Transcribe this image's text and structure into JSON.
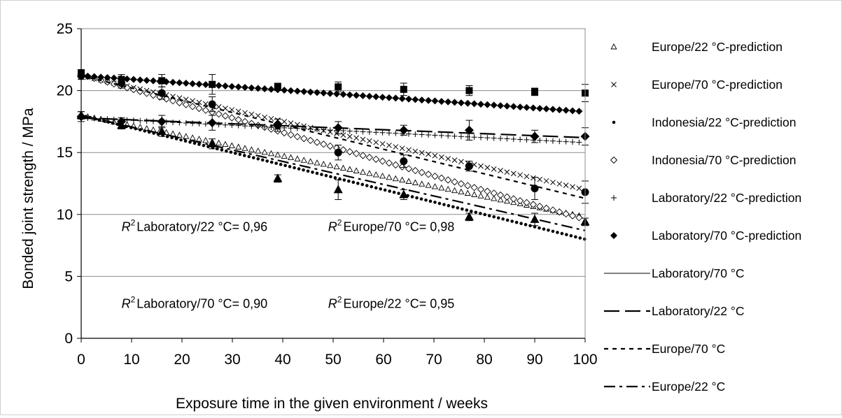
{
  "chart_data": {
    "type": "scatter",
    "xlabel": "Exposure time in the given environment / weeks",
    "ylabel": "Bonded joint strength / MPa",
    "xlim": [
      0,
      100
    ],
    "ylim": [
      0,
      25
    ],
    "x_ticks": [
      "0",
      "10",
      "20",
      "30",
      "40",
      "50",
      "60",
      "70",
      "80",
      "90",
      "100"
    ],
    "y_ticks": [
      "0",
      "5",
      "10",
      "15",
      "20",
      "25"
    ],
    "grid": "horizontal",
    "legend_position": "right",
    "measured_x": [
      0,
      8,
      16,
      26,
      39,
      51,
      64,
      77,
      90,
      100
    ],
    "measured": [
      {
        "symbol": "filled-square",
        "values": [
          21.4,
          20.9,
          20.8,
          20.5,
          20.3,
          20.3,
          20.1,
          20.0,
          19.9,
          19.8
        ],
        "errors": [
          0.3,
          0.4,
          0.5,
          0.8,
          0.3,
          0.4,
          0.5,
          0.4,
          0.3,
          0.7
        ]
      },
      {
        "symbol": "filled-diamond",
        "values": [
          17.9,
          17.5,
          17.5,
          17.4,
          17.3,
          17.0,
          16.8,
          16.8,
          16.3,
          16.3
        ],
        "errors": [
          0.4,
          0.3,
          0.5,
          0.6,
          0.4,
          0.5,
          0.4,
          0.8,
          0.5,
          0.7
        ]
      },
      {
        "symbol": "filled-circle",
        "values": [
          21.2,
          20.6,
          19.8,
          18.9,
          17.2,
          15.0,
          14.3,
          13.9,
          12.1,
          11.8
        ],
        "errors": [
          0.3,
          0.4,
          0.5,
          0.6,
          0.5,
          0.6,
          0.5,
          0.4,
          0.9,
          0.9
        ]
      },
      {
        "symbol": "filled-triangle",
        "values": [
          18.0,
          17.2,
          16.7,
          15.7,
          12.9,
          12.0,
          11.6,
          9.8,
          9.6,
          9.4
        ],
        "errors": [
          0.3,
          0.3,
          0.4,
          0.4,
          0.3,
          0.8,
          0.4,
          0.3,
          0.5,
          0.3
        ]
      }
    ],
    "series": [
      {
        "name": "Europe/22 °C-prediction",
        "style": "triangle-open",
        "x": [
          0,
          100
        ],
        "y": [
          18.0,
          9.8
        ]
      },
      {
        "name": "Europe/70 °C-prediction",
        "style": "cross",
        "x": [
          0,
          100
        ],
        "y": [
          21.2,
          12.0
        ]
      },
      {
        "name": "Indonesia/22 °C-prediction",
        "style": "dot",
        "x": [
          0,
          100
        ],
        "y": [
          18.0,
          8.0
        ]
      },
      {
        "name": "Indonesia/70 °C-prediction",
        "style": "diamond-open",
        "x": [
          0,
          100
        ],
        "y": [
          21.3,
          9.6
        ]
      },
      {
        "name": "Laboratory/22 °C-prediction",
        "style": "plus",
        "x": [
          0,
          100
        ],
        "y": [
          17.8,
          15.8
        ]
      },
      {
        "name": "Laboratory/70 °C-prediction",
        "style": "diamond-filled",
        "x": [
          0,
          100
        ],
        "y": [
          21.2,
          18.3
        ]
      },
      {
        "name": "Laboratory/70 °C",
        "style": "thin-line",
        "x": [],
        "y": []
      },
      {
        "name": "Laboratory/22 °C",
        "style": "long-dash",
        "x": [
          0,
          100
        ],
        "y": [
          17.8,
          16.2
        ]
      },
      {
        "name": "Europe/70 °C",
        "style": "short-dash",
        "x": [
          0,
          100
        ],
        "y": [
          21.2,
          11.3
        ]
      },
      {
        "name": "Europe/22 °C",
        "style": "dash-dot",
        "x": [
          0,
          100
        ],
        "y": [
          18.0,
          8.7
        ]
      }
    ],
    "annotations": [
      {
        "label": "Laboratory/22 °C= 0,96",
        "at": [
          8,
          9
        ]
      },
      {
        "label": "Europe/70 °C= 0,98",
        "at": [
          49,
          9
        ]
      },
      {
        "label": "Laboratory/70 °C= 0,90",
        "at": [
          8,
          2.8
        ]
      },
      {
        "label": "Europe/22 °C= 0,95",
        "at": [
          49,
          2.8
        ]
      }
    ],
    "annotation_prefix": "R",
    "annotation_exponent": "2"
  }
}
